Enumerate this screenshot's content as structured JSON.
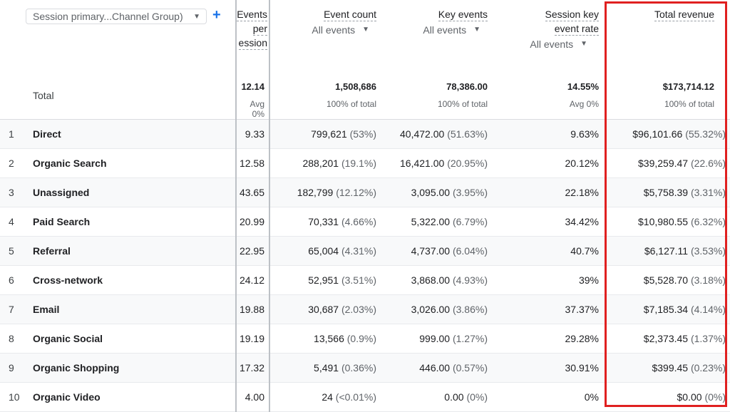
{
  "dimension": {
    "label": "Session primary...Channel Group)",
    "add_label": "+"
  },
  "columns": {
    "events_per_session": {
      "lines": [
        "Events",
        "per",
        "ession"
      ]
    },
    "event_count": {
      "label": "Event count",
      "filter": "All events"
    },
    "key_events": {
      "label": "Key events",
      "filter": "All events"
    },
    "session_key_event_rate": {
      "lines": [
        "Session key",
        "event rate"
      ],
      "filter": "All events"
    },
    "total_revenue": {
      "label": "Total revenue"
    }
  },
  "totals": {
    "label": "Total",
    "events_per_session": {
      "value": "12.14",
      "sub": "Avg 0%"
    },
    "event_count": {
      "value": "1,508,686",
      "sub": "100% of total"
    },
    "key_events": {
      "value": "78,386.00",
      "sub": "100% of total"
    },
    "session_key_event_rate": {
      "value": "14.55%",
      "sub": "Avg 0%"
    },
    "total_revenue": {
      "value": "$173,714.12",
      "sub": "100% of total"
    }
  },
  "rows": [
    {
      "rank": "1",
      "name": "Direct",
      "eps": "9.33",
      "ec": "799,621",
      "ec_pct": "(53%)",
      "ke": "40,472.00",
      "ke_pct": "(51.63%)",
      "rate": "9.63%",
      "rev": "$96,101.66",
      "rev_pct": "(55.32%)"
    },
    {
      "rank": "2",
      "name": "Organic Search",
      "eps": "12.58",
      "ec": "288,201",
      "ec_pct": "(19.1%)",
      "ke": "16,421.00",
      "ke_pct": "(20.95%)",
      "rate": "20.12%",
      "rev": "$39,259.47",
      "rev_pct": "(22.6%)"
    },
    {
      "rank": "3",
      "name": "Unassigned",
      "eps": "43.65",
      "ec": "182,799",
      "ec_pct": "(12.12%)",
      "ke": "3,095.00",
      "ke_pct": "(3.95%)",
      "rate": "22.18%",
      "rev": "$5,758.39",
      "rev_pct": "(3.31%)"
    },
    {
      "rank": "4",
      "name": "Paid Search",
      "eps": "20.99",
      "ec": "70,331",
      "ec_pct": "(4.66%)",
      "ke": "5,322.00",
      "ke_pct": "(6.79%)",
      "rate": "34.42%",
      "rev": "$10,980.55",
      "rev_pct": "(6.32%)"
    },
    {
      "rank": "5",
      "name": "Referral",
      "eps": "22.95",
      "ec": "65,004",
      "ec_pct": "(4.31%)",
      "ke": "4,737.00",
      "ke_pct": "(6.04%)",
      "rate": "40.7%",
      "rev": "$6,127.11",
      "rev_pct": "(3.53%)"
    },
    {
      "rank": "6",
      "name": "Cross-network",
      "eps": "24.12",
      "ec": "52,951",
      "ec_pct": "(3.51%)",
      "ke": "3,868.00",
      "ke_pct": "(4.93%)",
      "rate": "39%",
      "rev": "$5,528.70",
      "rev_pct": "(3.18%)"
    },
    {
      "rank": "7",
      "name": "Email",
      "eps": "19.88",
      "ec": "30,687",
      "ec_pct": "(2.03%)",
      "ke": "3,026.00",
      "ke_pct": "(3.86%)",
      "rate": "37.37%",
      "rev": "$7,185.34",
      "rev_pct": "(4.14%)"
    },
    {
      "rank": "8",
      "name": "Organic Social",
      "eps": "19.19",
      "ec": "13,566",
      "ec_pct": "(0.9%)",
      "ke": "999.00",
      "ke_pct": "(1.27%)",
      "rate": "29.28%",
      "rev": "$2,373.45",
      "rev_pct": "(1.37%)"
    },
    {
      "rank": "9",
      "name": "Organic Shopping",
      "eps": "17.32",
      "ec": "5,491",
      "ec_pct": "(0.36%)",
      "ke": "446.00",
      "ke_pct": "(0.57%)",
      "rate": "30.91%",
      "rev": "$399.45",
      "rev_pct": "(0.23%)"
    },
    {
      "rank": "10",
      "name": "Organic Video",
      "eps": "4.00",
      "ec": "24",
      "ec_pct": "(<0.01%)",
      "ke": "0.00",
      "ke_pct": "(0%)",
      "rate": "0%",
      "rev": "$0.00",
      "rev_pct": "(0%)"
    }
  ],
  "accent": {
    "highlight": "#e02020",
    "link": "#1a73e8"
  }
}
